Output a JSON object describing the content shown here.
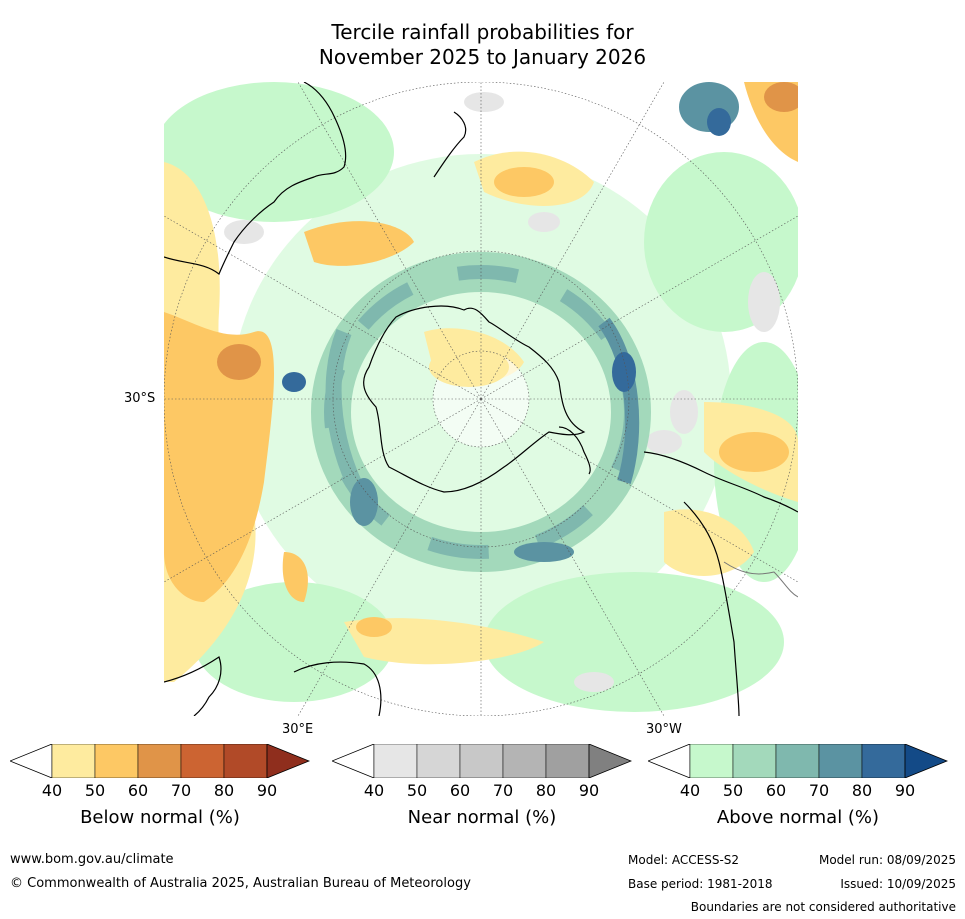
{
  "title": {
    "line1": "Tercile rainfall probabilities for",
    "line2": "November 2025 to January 2026"
  },
  "map": {
    "lat_label": "30°S",
    "lon_label_left": "30°E",
    "lon_label_right": "30°W"
  },
  "colorbars": [
    {
      "label": "Below normal (%)",
      "ticks": [
        "40",
        "50",
        "60",
        "70",
        "80",
        "90"
      ],
      "colors": [
        "#ffffff",
        "#feeb9f",
        "#fdc864",
        "#e09448",
        "#cc6432",
        "#b14a28",
        "#8f2e1d"
      ]
    },
    {
      "label": "Near normal (%)",
      "ticks": [
        "40",
        "50",
        "60",
        "70",
        "80",
        "90"
      ],
      "colors": [
        "#ffffff",
        "#e6e6e6",
        "#d6d6d6",
        "#c8c8c8",
        "#b4b4b4",
        "#a0a0a0",
        "#808080"
      ]
    },
    {
      "label": "Above normal (%)",
      "ticks": [
        "40",
        "50",
        "60",
        "70",
        "80",
        "90"
      ],
      "colors": [
        "#ffffff",
        "#c6f8cc",
        "#a3d9bb",
        "#7fb8ae",
        "#5b93a2",
        "#346a9b",
        "#134a87"
      ]
    }
  ],
  "footer": {
    "url": "www.bom.gov.au/climate",
    "copyright": "© Commonwealth of Australia 2025, Australian Bureau of Meteorology",
    "model": "Model: ACCESS-S2",
    "base_period": "Base period: 1981-2018",
    "model_run": "Model run: 08/09/2025",
    "issued": "Issued: 10/09/2025",
    "disclaimer": "Boundaries are not considered authoritative"
  }
}
